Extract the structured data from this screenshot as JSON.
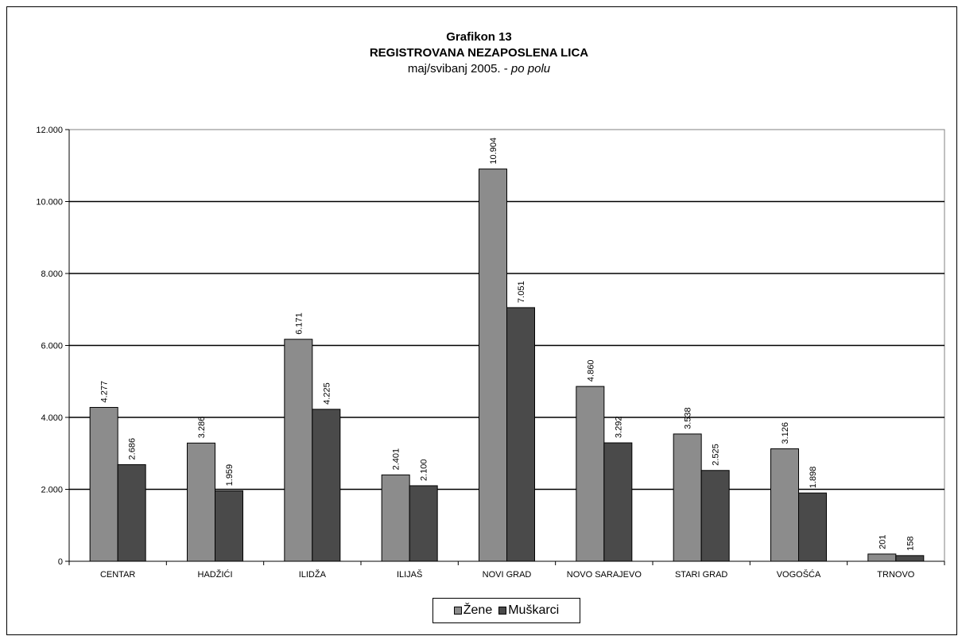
{
  "chart_data": {
    "type": "bar",
    "title": "Grafikon 13",
    "subtitle_line1": "REGISTROVANA NEZAPOSLENA LICA",
    "subtitle_line2_plain": "maj/svibanj 2005. - ",
    "subtitle_line2_italic": "po polu",
    "categories": [
      "CENTAR",
      "HADŽIĆI",
      "ILIDŽA",
      "ILIJAŠ",
      "NOVI GRAD",
      "NOVO SARAJEVO",
      "STARI GRAD",
      "VOGOŠĆA",
      "TRNOVO"
    ],
    "series": [
      {
        "name": "Žene",
        "color": "#8c8c8c",
        "values": [
          4277,
          3286,
          6171,
          2401,
          10904,
          4860,
          3538,
          3126,
          201
        ],
        "labels": [
          "4.277",
          "3.286",
          "6.171",
          "2.401",
          "10.904",
          "4.860",
          "3.538",
          "3.126",
          "201"
        ]
      },
      {
        "name": "Muškarci",
        "color": "#4a4a4a",
        "values": [
          2686,
          1959,
          4225,
          2100,
          7051,
          3292,
          2525,
          1898,
          158
        ],
        "labels": [
          "2.686",
          "1.959",
          "4.225",
          "2.100",
          "7.051",
          "3.292",
          "2.525",
          "1.898",
          "158"
        ]
      }
    ],
    "ylim": [
      0,
      12000
    ],
    "yticks": [
      0,
      2000,
      4000,
      6000,
      8000,
      10000,
      12000
    ],
    "ytick_labels": [
      "0",
      "2.000",
      "4.000",
      "6.000",
      "8.000",
      "10.000",
      "12.000"
    ],
    "grid": true,
    "legend_position": "bottom"
  }
}
